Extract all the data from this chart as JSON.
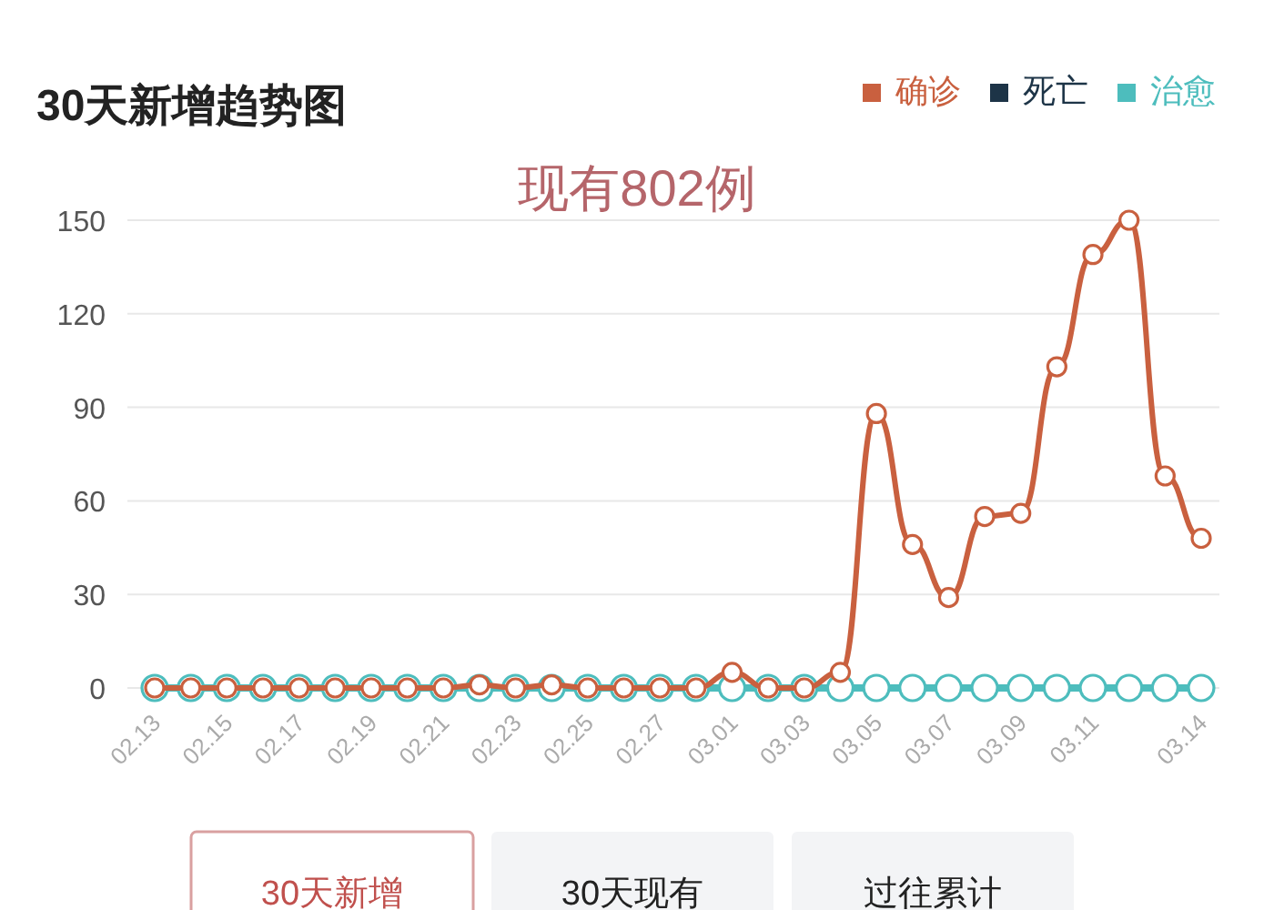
{
  "chart_data": {
    "type": "line",
    "title": "30天新增趋势图",
    "subtitle": "现有802例",
    "categories": [
      "02.13",
      null,
      "02.15",
      null,
      "02.17",
      null,
      "02.19",
      null,
      "02.21",
      null,
      "02.23",
      null,
      "02.25",
      null,
      "02.27",
      null,
      "03.01",
      null,
      "03.03",
      null,
      "03.05",
      null,
      "03.07",
      null,
      "03.09",
      null,
      "03.11",
      null,
      null,
      "03.14"
    ],
    "series": [
      {
        "name": "确诊",
        "color": "#c9603f",
        "values": [
          0,
          0,
          0,
          0,
          0,
          0,
          0,
          0,
          0,
          1,
          0,
          1,
          0,
          0,
          0,
          0,
          5,
          0,
          0,
          5,
          88,
          46,
          29,
          55,
          56,
          103,
          139,
          150,
          68,
          48
        ]
      },
      {
        "name": "死亡",
        "color": "#1d3447",
        "values": [
          null,
          null,
          null,
          null,
          null,
          null,
          null,
          null,
          null,
          null,
          null,
          null,
          null,
          null,
          null,
          null,
          null,
          null,
          null,
          null,
          null,
          null,
          null,
          null,
          null,
          null,
          null,
          null,
          null,
          null
        ]
      },
      {
        "name": "治愈",
        "color": "#4dbdbd",
        "values": [
          0,
          0,
          0,
          0,
          0,
          0,
          0,
          0,
          0,
          0,
          0,
          0,
          0,
          0,
          0,
          0,
          0,
          0,
          0,
          0,
          0,
          0,
          0,
          0,
          0,
          0,
          0,
          0,
          0,
          0
        ]
      }
    ],
    "ylim": [
      0,
      150
    ],
    "yticks": [
      0,
      30,
      60,
      90,
      120,
      150
    ],
    "grid": "y",
    "legend": "top right",
    "marker": "circle",
    "line_style": "solid",
    "annotations": [
      "30天新增",
      "30天现有",
      "过往累计"
    ]
  }
}
